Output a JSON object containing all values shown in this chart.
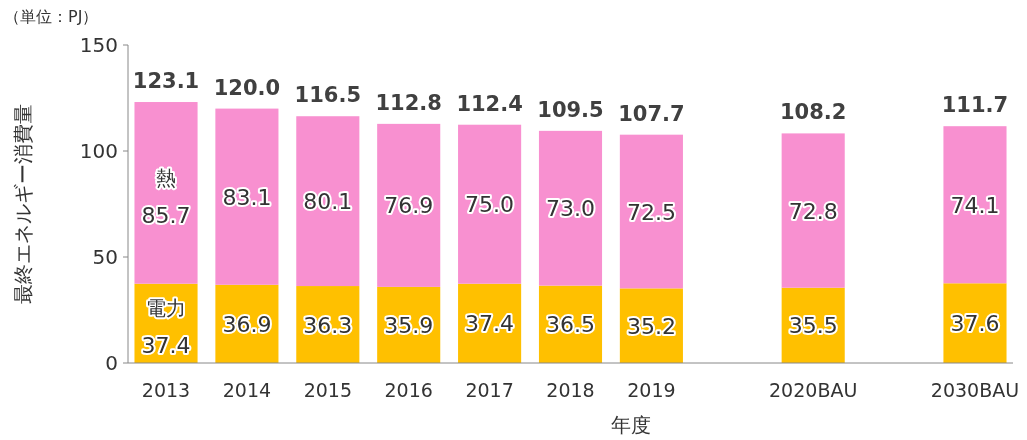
{
  "chart_data": {
    "type": "bar",
    "stacked": true,
    "ylabel": "最終エネルギー消費量",
    "xlabel": "年度",
    "annotations": [
      "（単位：PJ）"
    ],
    "categories": [
      "2013",
      "2014",
      "2015",
      "2016",
      "2017",
      "2018",
      "2019",
      null,
      "2020BAU",
      null,
      "2030BAU"
    ],
    "series": [
      {
        "name": "電力",
        "color": "#ffc000",
        "values": [
          37.4,
          36.9,
          36.3,
          35.9,
          37.4,
          36.5,
          35.2,
          null,
          35.5,
          null,
          37.6
        ],
        "value_labels": [
          "37.4",
          "36.9",
          "36.3",
          "35.9",
          "37.4",
          "36.5",
          "35.2",
          null,
          "35.5",
          null,
          "37.6"
        ]
      },
      {
        "name": "熱",
        "color": "#f890d0",
        "values": [
          85.7,
          83.1,
          80.1,
          76.9,
          75.0,
          73.0,
          72.5,
          null,
          72.8,
          null,
          74.1
        ],
        "value_labels": [
          "85.7",
          "83.1",
          "80.1",
          "76.9",
          "75.0",
          "73.0",
          "72.5",
          null,
          "72.8",
          null,
          "74.1"
        ]
      }
    ],
    "totals": [
      "123.1",
      "120.0",
      "116.5",
      "112.8",
      "112.4",
      "109.5",
      "107.7",
      null,
      "108.2",
      null,
      "111.7"
    ],
    "ylim": [
      0,
      150
    ],
    "yticks": [
      0,
      50,
      100,
      150
    ],
    "grid": false
  }
}
